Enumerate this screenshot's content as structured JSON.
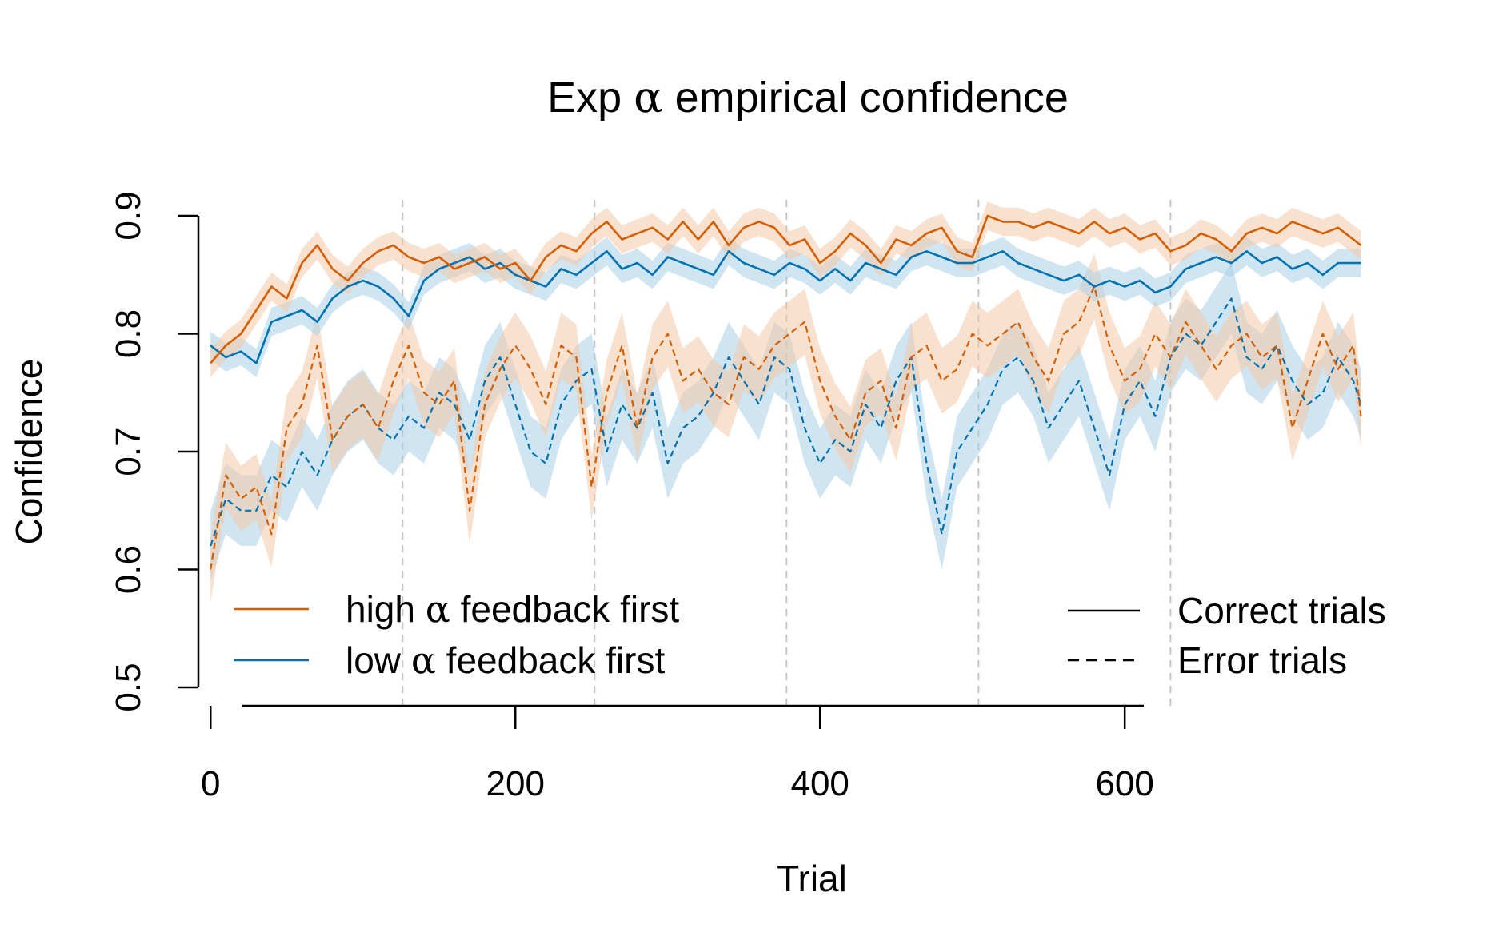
{
  "chart_data": {
    "type": "line",
    "title_prefix": "Exp ",
    "title_symbol": "α",
    "title_suffix": " empirical confidence",
    "xlabel": "Trial",
    "ylabel": "Confidence",
    "xlim": [
      -8,
      770
    ],
    "ylim": [
      0.5,
      0.9
    ],
    "x_ticks": [
      0,
      200,
      400,
      600
    ],
    "y_ticks": [
      0.5,
      0.6,
      0.7,
      0.8,
      0.9
    ],
    "block_boundaries": [
      126,
      252,
      378,
      504,
      630
    ],
    "colors": {
      "high_alpha": "#D55E00",
      "low_alpha": "#0072B2",
      "block_lines": "#c8c8c8"
    },
    "legend_groups": [
      {
        "prefix": "high ",
        "symbol": "α",
        "suffix": " feedback first",
        "color": "#D55E00"
      },
      {
        "prefix": "low ",
        "symbol": "α",
        "suffix": " feedback first",
        "color": "#0072B2"
      }
    ],
    "legend_linetypes": [
      {
        "label": "Correct trials",
        "style": "solid"
      },
      {
        "label": "Error trials",
        "style": "dashed"
      }
    ],
    "series": [
      {
        "name": "high α feedback first - Correct trials",
        "group": "high",
        "style": "solid",
        "color": "#D55E00",
        "band_halfwidth": 0.012,
        "x": [
          0,
          10,
          20,
          30,
          40,
          50,
          60,
          70,
          80,
          90,
          100,
          110,
          120,
          130,
          140,
          150,
          160,
          170,
          180,
          190,
          200,
          210,
          220,
          230,
          240,
          250,
          260,
          270,
          280,
          290,
          300,
          310,
          320,
          330,
          340,
          350,
          360,
          370,
          380,
          390,
          400,
          410,
          420,
          430,
          440,
          450,
          460,
          470,
          480,
          490,
          500,
          510,
          520,
          530,
          540,
          550,
          560,
          570,
          580,
          590,
          600,
          610,
          620,
          630,
          640,
          650,
          660,
          670,
          680,
          690,
          700,
          710,
          720,
          730,
          740,
          750,
          755
        ],
        "values": [
          0.775,
          0.79,
          0.8,
          0.82,
          0.84,
          0.83,
          0.86,
          0.875,
          0.855,
          0.845,
          0.86,
          0.87,
          0.875,
          0.865,
          0.86,
          0.865,
          0.855,
          0.86,
          0.865,
          0.855,
          0.86,
          0.845,
          0.865,
          0.875,
          0.87,
          0.885,
          0.895,
          0.88,
          0.885,
          0.89,
          0.88,
          0.895,
          0.88,
          0.895,
          0.875,
          0.89,
          0.895,
          0.89,
          0.875,
          0.88,
          0.86,
          0.87,
          0.885,
          0.875,
          0.86,
          0.88,
          0.875,
          0.885,
          0.89,
          0.87,
          0.865,
          0.9,
          0.895,
          0.895,
          0.89,
          0.895,
          0.89,
          0.885,
          0.895,
          0.885,
          0.89,
          0.88,
          0.885,
          0.87,
          0.875,
          0.885,
          0.88,
          0.87,
          0.885,
          0.89,
          0.885,
          0.895,
          0.89,
          0.885,
          0.89,
          0.88,
          0.875
        ]
      },
      {
        "name": "low α feedback first - Correct trials",
        "group": "low",
        "style": "solid",
        "color": "#0072B2",
        "band_halfwidth": 0.012,
        "x": [
          0,
          10,
          20,
          30,
          40,
          50,
          60,
          70,
          80,
          90,
          100,
          110,
          120,
          130,
          140,
          150,
          160,
          170,
          180,
          190,
          200,
          210,
          220,
          230,
          240,
          250,
          260,
          270,
          280,
          290,
          300,
          310,
          320,
          330,
          340,
          350,
          360,
          370,
          380,
          390,
          400,
          410,
          420,
          430,
          440,
          450,
          460,
          470,
          480,
          490,
          500,
          510,
          520,
          530,
          540,
          550,
          560,
          570,
          580,
          590,
          600,
          610,
          620,
          630,
          640,
          650,
          660,
          670,
          680,
          690,
          700,
          710,
          720,
          730,
          740,
          750,
          755
        ],
        "values": [
          0.79,
          0.78,
          0.785,
          0.775,
          0.81,
          0.815,
          0.82,
          0.81,
          0.83,
          0.84,
          0.845,
          0.84,
          0.83,
          0.815,
          0.845,
          0.855,
          0.86,
          0.865,
          0.855,
          0.86,
          0.85,
          0.845,
          0.84,
          0.855,
          0.85,
          0.86,
          0.87,
          0.855,
          0.86,
          0.85,
          0.865,
          0.86,
          0.855,
          0.85,
          0.87,
          0.86,
          0.855,
          0.85,
          0.86,
          0.855,
          0.845,
          0.855,
          0.845,
          0.86,
          0.855,
          0.85,
          0.865,
          0.87,
          0.865,
          0.86,
          0.86,
          0.865,
          0.87,
          0.86,
          0.855,
          0.85,
          0.845,
          0.85,
          0.84,
          0.845,
          0.84,
          0.845,
          0.835,
          0.84,
          0.855,
          0.86,
          0.865,
          0.86,
          0.87,
          0.86,
          0.865,
          0.855,
          0.86,
          0.85,
          0.86,
          0.86,
          0.86
        ]
      },
      {
        "name": "high α feedback first - Error trials",
        "group": "high",
        "style": "dashed",
        "color": "#D55E00",
        "band_halfwidth": 0.028,
        "x": [
          0,
          10,
          20,
          30,
          40,
          50,
          60,
          70,
          80,
          90,
          100,
          110,
          120,
          130,
          140,
          150,
          160,
          170,
          180,
          190,
          200,
          210,
          220,
          230,
          240,
          250,
          260,
          270,
          280,
          290,
          300,
          310,
          320,
          330,
          340,
          350,
          360,
          370,
          380,
          390,
          400,
          410,
          420,
          430,
          440,
          450,
          460,
          470,
          480,
          490,
          500,
          510,
          520,
          530,
          540,
          550,
          560,
          570,
          580,
          590,
          600,
          610,
          620,
          630,
          640,
          650,
          660,
          670,
          680,
          690,
          700,
          710,
          720,
          730,
          740,
          750,
          755
        ],
        "values": [
          0.6,
          0.68,
          0.66,
          0.67,
          0.63,
          0.72,
          0.74,
          0.79,
          0.71,
          0.73,
          0.74,
          0.72,
          0.76,
          0.79,
          0.75,
          0.74,
          0.76,
          0.65,
          0.74,
          0.77,
          0.79,
          0.77,
          0.74,
          0.79,
          0.78,
          0.67,
          0.75,
          0.79,
          0.72,
          0.78,
          0.8,
          0.76,
          0.77,
          0.75,
          0.74,
          0.78,
          0.77,
          0.79,
          0.8,
          0.81,
          0.76,
          0.73,
          0.71,
          0.75,
          0.76,
          0.72,
          0.78,
          0.79,
          0.76,
          0.77,
          0.8,
          0.79,
          0.8,
          0.81,
          0.78,
          0.76,
          0.8,
          0.81,
          0.84,
          0.79,
          0.76,
          0.77,
          0.8,
          0.78,
          0.81,
          0.79,
          0.77,
          0.79,
          0.8,
          0.78,
          0.79,
          0.72,
          0.76,
          0.8,
          0.77,
          0.79,
          0.73
        ]
      },
      {
        "name": "low α feedback first - Error trials",
        "group": "low",
        "style": "dashed",
        "color": "#0072B2",
        "band_halfwidth": 0.03,
        "x": [
          0,
          10,
          20,
          30,
          40,
          50,
          60,
          70,
          80,
          90,
          100,
          110,
          120,
          130,
          140,
          150,
          160,
          170,
          180,
          190,
          200,
          210,
          220,
          230,
          240,
          250,
          260,
          270,
          280,
          290,
          300,
          310,
          320,
          330,
          340,
          350,
          360,
          370,
          380,
          390,
          400,
          410,
          420,
          430,
          440,
          450,
          460,
          470,
          480,
          490,
          500,
          510,
          520,
          530,
          540,
          550,
          560,
          570,
          580,
          590,
          600,
          610,
          620,
          630,
          640,
          650,
          660,
          670,
          680,
          690,
          700,
          710,
          720,
          730,
          740,
          750,
          755
        ],
        "values": [
          0.62,
          0.66,
          0.65,
          0.65,
          0.68,
          0.67,
          0.7,
          0.68,
          0.71,
          0.73,
          0.74,
          0.72,
          0.71,
          0.73,
          0.72,
          0.75,
          0.74,
          0.71,
          0.76,
          0.78,
          0.74,
          0.7,
          0.69,
          0.74,
          0.76,
          0.77,
          0.7,
          0.74,
          0.72,
          0.75,
          0.69,
          0.72,
          0.73,
          0.75,
          0.78,
          0.76,
          0.74,
          0.78,
          0.77,
          0.72,
          0.69,
          0.71,
          0.7,
          0.74,
          0.72,
          0.76,
          0.78,
          0.69,
          0.63,
          0.7,
          0.72,
          0.74,
          0.77,
          0.78,
          0.76,
          0.72,
          0.74,
          0.76,
          0.72,
          0.68,
          0.74,
          0.76,
          0.73,
          0.78,
          0.8,
          0.79,
          0.81,
          0.83,
          0.78,
          0.77,
          0.79,
          0.76,
          0.74,
          0.75,
          0.78,
          0.76,
          0.74
        ]
      }
    ]
  }
}
